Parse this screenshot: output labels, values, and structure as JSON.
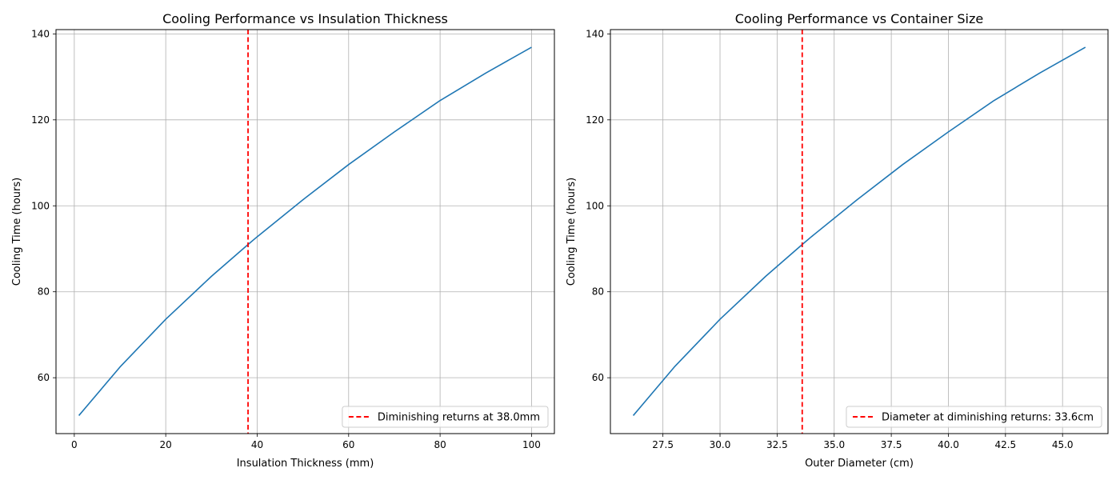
{
  "chart_data": [
    {
      "type": "line",
      "title": "Cooling Performance vs Insulation Thickness",
      "xlabel": "Insulation Thickness (mm)",
      "ylabel": "Cooling Time (hours)",
      "xlim": [
        -4,
        105
      ],
      "ylim": [
        47,
        141
      ],
      "xticks": [
        0,
        20,
        40,
        60,
        80,
        100
      ],
      "xtick_labels": [
        "0",
        "20",
        "40",
        "60",
        "80",
        "100"
      ],
      "yticks": [
        60,
        80,
        100,
        120,
        140
      ],
      "ytick_labels": [
        "60",
        "80",
        "100",
        "120",
        "140"
      ],
      "grid": true,
      "legend_position": "lower-right",
      "series": [
        {
          "color": "#1f77b4",
          "x": [
            1,
            10,
            20,
            30,
            38,
            40,
            50,
            60,
            70,
            80,
            90,
            100
          ],
          "values": [
            51.2,
            62.5,
            73.6,
            83.6,
            91.0,
            92.8,
            101.4,
            109.6,
            117.2,
            124.5,
            130.9,
            136.9
          ]
        }
      ],
      "reference_lines": [
        {
          "axis": "x",
          "value": 38.0,
          "color": "#ff0000",
          "style": "dashed",
          "label": "Diminishing returns at 38.0mm"
        }
      ]
    },
    {
      "type": "line",
      "title": "Cooling Performance vs Container Size",
      "xlabel": "Outer Diameter (cm)",
      "ylabel": "Cooling Time (hours)",
      "xlim": [
        25.2,
        46.99
      ],
      "ylim": [
        47,
        141
      ],
      "xticks": [
        27.5,
        30.0,
        32.5,
        35.0,
        37.5,
        40.0,
        42.5,
        45.0
      ],
      "xtick_labels": [
        "27.5",
        "30.0",
        "32.5",
        "35.0",
        "37.5",
        "40.0",
        "42.5",
        "45.0"
      ],
      "yticks": [
        60,
        80,
        100,
        120,
        140
      ],
      "ytick_labels": [
        "60",
        "80",
        "100",
        "120",
        "140"
      ],
      "grid": true,
      "legend_position": "lower-right",
      "series": [
        {
          "color": "#1f77b4",
          "x": [
            26.2,
            28.0,
            30.0,
            32.0,
            33.6,
            34.0,
            36.0,
            38.0,
            40.0,
            42.0,
            44.0,
            46.0
          ],
          "values": [
            51.2,
            62.5,
            73.6,
            83.6,
            91.0,
            92.8,
            101.4,
            109.6,
            117.2,
            124.5,
            130.9,
            136.9
          ]
        }
      ],
      "reference_lines": [
        {
          "axis": "x",
          "value": 33.6,
          "color": "#ff0000",
          "style": "dashed",
          "label": "Diameter at diminishing returns: 33.6cm"
        }
      ]
    }
  ]
}
